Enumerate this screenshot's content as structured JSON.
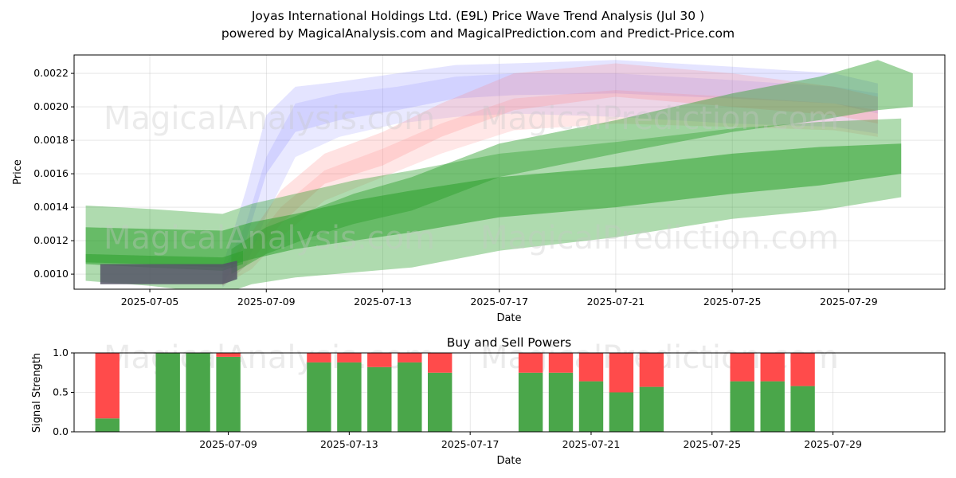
{
  "header": {
    "title_line1": "Joyas International Holdings Ltd. (E9L) Price Wave Trend Analysis (Jul 30 )",
    "title_line2": "powered by MagicalAnalysis.com and MagicalPrediction.com and Predict-Price.com"
  },
  "watermarks": [
    "MagicalAnalysis.com",
    "MagicalPrediction.com"
  ],
  "chart_data": [
    {
      "type": "area",
      "title": "",
      "xlabel": "Date",
      "ylabel": "Price",
      "xlim_day": [
        2.4,
        32.3
      ],
      "ylim": [
        0.00091,
        0.00231
      ],
      "xticks": [
        {
          "day": 5,
          "label": "2025-07-05"
        },
        {
          "day": 9,
          "label": "2025-07-09"
        },
        {
          "day": 13,
          "label": "2025-07-13"
        },
        {
          "day": 17,
          "label": "2025-07-17"
        },
        {
          "day": 21,
          "label": "2025-07-21"
        },
        {
          "day": 25,
          "label": "2025-07-25"
        },
        {
          "day": 29,
          "label": "2025-07-29"
        }
      ],
      "yticks": [
        {
          "value": 0.001,
          "label": "0.0010"
        },
        {
          "value": 0.0012,
          "label": "0.0012"
        },
        {
          "value": 0.0014,
          "label": "0.0014"
        },
        {
          "value": 0.0016,
          "label": "0.0016"
        },
        {
          "value": 0.0018,
          "label": "0.0018"
        },
        {
          "value": 0.002,
          "label": "0.0020"
        },
        {
          "value": 0.0022,
          "label": "0.0022"
        }
      ],
      "grid": true,
      "colors": {
        "green": "#2ca02c",
        "blue": "#6b6bff",
        "red": "#ff7a7a",
        "dark": "#555566"
      },
      "series": [
        {
          "name": "blue-wave-1",
          "color": "blue",
          "opacity": 0.18,
          "days": [
            7.5,
            8.3,
            9,
            10,
            11.5,
            13.5,
            15.5,
            17.5,
            21,
            25,
            28.5,
            30
          ],
          "upper": [
            0.00105,
            0.0015,
            0.00195,
            0.00212,
            0.00215,
            0.0022,
            0.00225,
            0.00226,
            0.00228,
            0.00224,
            0.0022,
            0.00214
          ],
          "lower": [
            0.00093,
            0.0012,
            0.0016,
            0.00185,
            0.00192,
            0.00198,
            0.00205,
            0.00207,
            0.00208,
            0.00205,
            0.00202,
            0.00196
          ]
        },
        {
          "name": "blue-wave-2",
          "color": "blue",
          "opacity": 0.15,
          "days": [
            7.5,
            8.3,
            9,
            10,
            11.5,
            13.5,
            15.5,
            17.5,
            21,
            25,
            28.5,
            30
          ],
          "upper": [
            0.00102,
            0.0013,
            0.0017,
            0.00202,
            0.00208,
            0.00212,
            0.00218,
            0.0022,
            0.0022,
            0.00216,
            0.00212,
            0.00208
          ],
          "lower": [
            0.00092,
            0.00105,
            0.00135,
            0.0017,
            0.00182,
            0.0019,
            0.00194,
            0.00196,
            0.00194,
            0.0019,
            0.00188,
            0.00184
          ]
        },
        {
          "name": "red-wave-1",
          "color": "red",
          "opacity": 0.22,
          "days": [
            7.5,
            8.5,
            9.5,
            11,
            13,
            15,
            17.5,
            21,
            25,
            28.5,
            30
          ],
          "upper": [
            0.00102,
            0.00125,
            0.0015,
            0.00172,
            0.00185,
            0.00202,
            0.0022,
            0.00226,
            0.0022,
            0.00212,
            0.00206
          ],
          "lower": [
            0.00093,
            0.00108,
            0.0013,
            0.00154,
            0.00165,
            0.00182,
            0.00198,
            0.00206,
            0.002,
            0.00195,
            0.0019
          ]
        },
        {
          "name": "red-wave-2",
          "color": "red",
          "opacity": 0.18,
          "days": [
            7.5,
            8.5,
            9.5,
            11,
            13,
            15,
            17.5,
            21,
            25,
            28.5,
            30
          ],
          "upper": [
            0.001,
            0.00118,
            0.0014,
            0.00162,
            0.00175,
            0.0019,
            0.00205,
            0.0021,
            0.00206,
            0.00202,
            0.00198
          ],
          "lower": [
            0.00093,
            0.00103,
            0.00122,
            0.00144,
            0.00158,
            0.00172,
            0.00186,
            0.0019,
            0.00188,
            0.00186,
            0.00182
          ]
        },
        {
          "name": "green-band-wide",
          "color": "green",
          "opacity": 0.38,
          "days": [
            2.8,
            5,
            7.5,
            8.5,
            10,
            12,
            14,
            17,
            21,
            25,
            28,
            30.8
          ],
          "upper": [
            0.00141,
            0.00139,
            0.00136,
            0.00142,
            0.00148,
            0.00156,
            0.00162,
            0.00172,
            0.00179,
            0.00187,
            0.00191,
            0.00193
          ],
          "lower": [
            0.00096,
            0.00093,
            0.00088,
            0.00094,
            0.00098,
            0.00101,
            0.00104,
            0.00114,
            0.00122,
            0.00133,
            0.00138,
            0.00146
          ]
        },
        {
          "name": "green-band-lower",
          "color": "green",
          "opacity": 0.55,
          "days": [
            2.8,
            5,
            7.5,
            8.5,
            10,
            12,
            14,
            17,
            21,
            25,
            28,
            30.8
          ],
          "upper": [
            0.00128,
            0.00127,
            0.00126,
            0.00131,
            0.00136,
            0.00144,
            0.0015,
            0.00158,
            0.00164,
            0.00172,
            0.00176,
            0.00178
          ],
          "lower": [
            0.00107,
            0.00106,
            0.00104,
            0.00109,
            0.00115,
            0.0012,
            0.00125,
            0.00134,
            0.0014,
            0.00148,
            0.00153,
            0.0016
          ]
        },
        {
          "name": "green-band-upper",
          "color": "green",
          "opacity": 0.45,
          "days": [
            7.8,
            9,
            10.5,
            12,
            14,
            17,
            21,
            25,
            28,
            30,
            31.2
          ],
          "upper": [
            0.00115,
            0.00128,
            0.00138,
            0.00148,
            0.00158,
            0.00178,
            0.00192,
            0.00208,
            0.00218,
            0.00228,
            0.0022
          ],
          "lower": [
            0.001,
            0.00112,
            0.00122,
            0.0013,
            0.00138,
            0.00158,
            0.00172,
            0.00185,
            0.00192,
            0.00198,
            0.002
          ]
        },
        {
          "name": "green-flat-start",
          "color": "green",
          "opacity": 0.55,
          "days": [
            2.8,
            5,
            7.5,
            8.2
          ],
          "upper": [
            0.00112,
            0.00111,
            0.0011,
            0.00114
          ],
          "lower": [
            0.00106,
            0.00104,
            0.00102,
            0.00106
          ]
        },
        {
          "name": "dark-history",
          "color": "dark",
          "opacity": 0.85,
          "days": [
            3.3,
            5,
            7.5,
            8
          ],
          "upper": [
            0.00106,
            0.00106,
            0.00106,
            0.00108
          ],
          "lower": [
            0.00094,
            0.00094,
            0.00094,
            0.00097
          ]
        }
      ]
    },
    {
      "type": "bar",
      "title": "Buy and Sell Powers",
      "xlabel": "Date",
      "ylabel": "Signal Strength",
      "xlim_day": [
        3.9,
        32.7
      ],
      "ylim": [
        0,
        1
      ],
      "xticks": [
        {
          "day": 9,
          "label": "2025-07-09"
        },
        {
          "day": 13,
          "label": "2025-07-13"
        },
        {
          "day": 17,
          "label": "2025-07-17"
        },
        {
          "day": 21,
          "label": "2025-07-21"
        },
        {
          "day": 25,
          "label": "2025-07-25"
        },
        {
          "day": 29,
          "label": "2025-07-29"
        }
      ],
      "yticks": [
        {
          "value": 0,
          "label": "0.0"
        },
        {
          "value": 0.5,
          "label": "0.5"
        },
        {
          "value": 1,
          "label": "1.0"
        }
      ],
      "colors": {
        "buy": "#4aa64a",
        "sell": "#ff4b4b"
      },
      "series": [
        {
          "name": "buy",
          "values": [
            0.17,
            1.0,
            1.0,
            0.95,
            0.88,
            0.88,
            0.82,
            0.88,
            0.75,
            0.75,
            0.75,
            0.64,
            0.5,
            0.57,
            0.64,
            0.64,
            0.58
          ]
        },
        {
          "name": "sell",
          "values": [
            0.83,
            0.0,
            0.0,
            0.05,
            0.12,
            0.12,
            0.18,
            0.12,
            0.25,
            0.25,
            0.25,
            0.36,
            0.5,
            0.43,
            0.36,
            0.36,
            0.42
          ]
        }
      ],
      "days": [
        5,
        7,
        8,
        9,
        12,
        13,
        14,
        15,
        16,
        19,
        20,
        21,
        22,
        23,
        26,
        27,
        28
      ]
    }
  ]
}
